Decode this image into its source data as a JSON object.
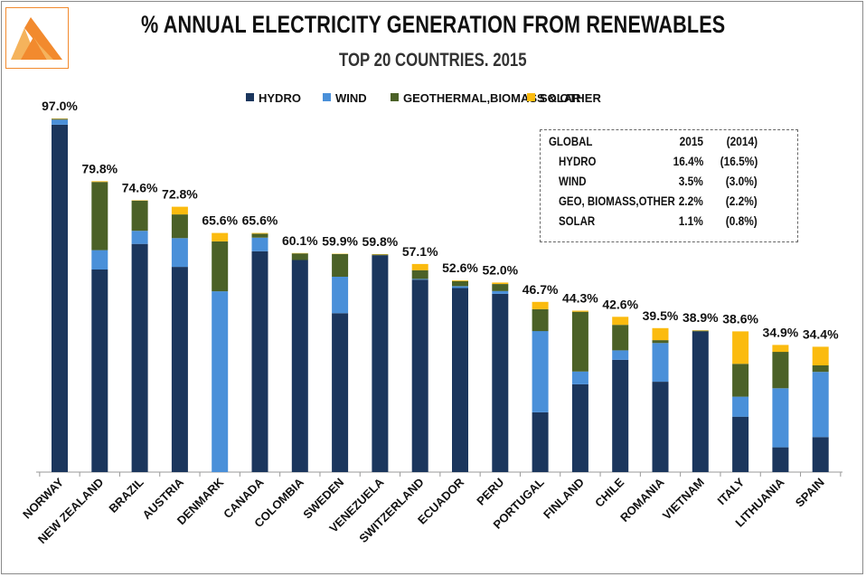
{
  "title": "% ANNUAL ELECTRICITY GENERATION FROM RENEWABLES",
  "subtitle": "TOP 20 COUNTRIES. 2015",
  "chart_data": {
    "type": "bar",
    "stacked": true,
    "title": "% ANNUAL ELECTRICITY GENERATION FROM RENEWABLES",
    "subtitle": "TOP 20 COUNTRIES. 2015",
    "xlabel": "",
    "ylabel": "",
    "ylim": [
      0,
      100
    ],
    "categories": [
      "NORWAY",
      "NEW ZEALAND",
      "BRAZIL",
      "AUSTRIA",
      "DENMARK",
      "CANADA",
      "COLOMBIA",
      "SWEDEN",
      "VENEZUELA",
      "SWITZERLAND",
      "ECUADOR",
      "PERU",
      "PORTUGAL",
      "FINLAND",
      "CHILE",
      "ROMANIA",
      "VIETNAM",
      "ITALY",
      "LITHUANIA",
      "SPAIN"
    ],
    "totals_labels": [
      "97.0%",
      "79.8%",
      "74.6%",
      "72.8%",
      "65.6%",
      "65.6%",
      "60.1%",
      "59.9%",
      "59.8%",
      "57.1%",
      "52.6%",
      "52.0%",
      "46.7%",
      "44.3%",
      "42.6%",
      "39.5%",
      "38.9%",
      "38.6%",
      "34.9%",
      "34.4%"
    ],
    "series": [
      {
        "name": "HYDRO",
        "color": "#1b365d",
        "values": [
          95.3,
          55.6,
          62.6,
          56.3,
          0.0,
          60.6,
          58.2,
          43.6,
          59.5,
          52.8,
          50.5,
          48.9,
          16.4,
          24.1,
          30.8,
          24.8,
          38.6,
          15.2,
          6.8,
          9.6
        ]
      },
      {
        "name": "WIND",
        "color": "#4a90d9",
        "values": [
          1.4,
          5.3,
          3.6,
          7.9,
          49.6,
          3.7,
          0.0,
          10.0,
          0.0,
          0.2,
          0.5,
          0.8,
          22.3,
          3.5,
          2.6,
          10.6,
          0.0,
          5.5,
          16.2,
          17.9
        ]
      },
      {
        "name": "GEOTHERMAL,BIOMASS & OTHER",
        "color": "#4b6127",
        "values": [
          0.2,
          18.7,
          8.3,
          6.5,
          13.7,
          1.1,
          1.8,
          6.2,
          0.2,
          2.4,
          1.4,
          1.9,
          6.0,
          16.4,
          7.0,
          0.8,
          0.2,
          9.0,
          10.0,
          1.8
        ]
      },
      {
        "name": "SOLAR",
        "color": "#fbbb0f",
        "values": [
          0.1,
          0.2,
          0.1,
          2.1,
          2.3,
          0.2,
          0.1,
          0.1,
          0.1,
          1.7,
          0.2,
          0.4,
          2.0,
          0.3,
          2.2,
          3.3,
          0.1,
          8.9,
          1.9,
          5.1
        ]
      }
    ],
    "legend_position": "top-center",
    "grid": false
  },
  "global_box": {
    "header": {
      "label": "GLOBAL",
      "col1": "2015",
      "col2": "(2014)"
    },
    "rows": [
      {
        "label": "HYDRO",
        "v2015": "16.4%",
        "v2014": "(16.5%)"
      },
      {
        "label": "WIND",
        "v2015": "3.5%",
        "v2014": "(3.0%)"
      },
      {
        "label": "GEO, BIOMASS,OTHER",
        "v2015": "2.2%",
        "v2014": "(2.2%)"
      },
      {
        "label": "SOLAR",
        "v2015": "1.1%",
        "v2014": "(0.8%)"
      }
    ]
  },
  "logo": {
    "name": "logo",
    "colors": [
      "#f28a2e",
      "#f5b35c"
    ]
  }
}
